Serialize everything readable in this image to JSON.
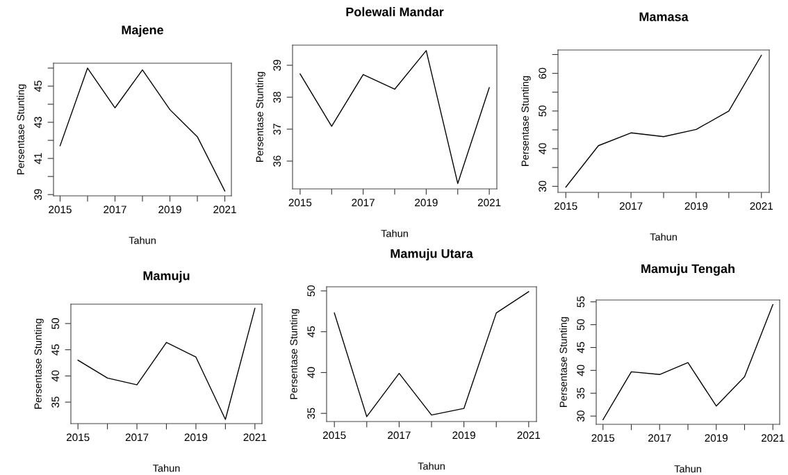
{
  "chart_data": [
    {
      "type": "line",
      "title": "Majene",
      "xlabel": "Tahun",
      "ylabel": "Persentase Stunting",
      "x": [
        2015,
        2016,
        2017,
        2018,
        2019,
        2020,
        2021
      ],
      "series": [
        {
          "color": "#000000",
          "values": [
            41.7,
            46.0,
            43.8,
            45.9,
            43.7,
            42.2,
            39.2
          ]
        }
      ],
      "xlim": [
        2014.76,
        2021.24
      ],
      "xticks": [
        2015,
        {
          "value": 2016,
          "label": null
        },
        2017,
        {
          "value": 2018,
          "label": null
        },
        2019,
        {
          "value": 2020,
          "label": null
        },
        2021
      ],
      "ylim": [
        38.93,
        46.27
      ],
      "yticks": [
        39,
        {
          "value": 40,
          "label": null
        },
        41,
        {
          "value": 42,
          "label": null
        },
        43,
        {
          "value": 44,
          "label": null
        },
        45,
        {
          "value": 46,
          "label": null
        }
      ],
      "grid": false,
      "legend": false
    },
    {
      "type": "line",
      "title": "Polewali Mandar",
      "xlabel": "Tahun",
      "ylabel": "Persentase Stunting",
      "x": [
        2015,
        2016,
        2017,
        2018,
        2019,
        2020,
        2021
      ],
      "series": [
        {
          "color": "#000000",
          "values": [
            38.73,
            37.09,
            38.71,
            38.25,
            39.46,
            35.3,
            38.3
          ]
        }
      ],
      "xlim": [
        2014.76,
        2021.24
      ],
      "xticks": [
        2015,
        {
          "value": 2016,
          "label": null
        },
        2017,
        {
          "value": 2018,
          "label": null
        },
        2019,
        {
          "value": 2020,
          "label": null
        },
        2021
      ],
      "ylim": [
        35.13,
        39.63
      ],
      "yticks": [
        36,
        37,
        38,
        39
      ],
      "grid": false,
      "legend": false
    },
    {
      "type": "line",
      "title": "Mamasa",
      "xlabel": "Tahun",
      "ylabel": "Persentase Stunting",
      "x": [
        2015,
        2016,
        2017,
        2018,
        2019,
        2020,
        2021
      ],
      "series": [
        {
          "color": "#000000",
          "values": [
            29.8,
            40.8,
            44.2,
            43.2,
            45.1,
            50.0,
            64.8
          ]
        }
      ],
      "xlim": [
        2014.76,
        2021.24
      ],
      "xticks": [
        2015,
        {
          "value": 2016,
          "label": null
        },
        2017,
        {
          "value": 2018,
          "label": null
        },
        2019,
        {
          "value": 2020,
          "label": null
        },
        2021
      ],
      "ylim": [
        28.4,
        66.2
      ],
      "yticks": [
        30,
        {
          "value": 35,
          "label": null
        },
        40,
        {
          "value": 45,
          "label": null
        },
        50,
        {
          "value": 55,
          "label": null
        },
        60,
        {
          "value": 65,
          "label": null
        }
      ],
      "grid": false,
      "legend": false
    },
    {
      "type": "line",
      "title": "Mamuju",
      "xlabel": "Tahun",
      "ylabel": "Persentase Stunting",
      "x": [
        2015,
        2016,
        2017,
        2018,
        2019,
        2020,
        2021
      ],
      "series": [
        {
          "color": "#000000",
          "values": [
            43.0,
            39.6,
            38.3,
            46.4,
            43.6,
            31.7,
            52.9
          ]
        }
      ],
      "xlim": [
        2014.76,
        2021.24
      ],
      "xticks": [
        2015,
        {
          "value": 2016,
          "label": null
        },
        2017,
        {
          "value": 2018,
          "label": null
        },
        2019,
        {
          "value": 2020,
          "label": null
        },
        2021
      ],
      "ylim": [
        30.9,
        53.7
      ],
      "yticks": [
        35,
        40,
        45,
        50
      ],
      "grid": false,
      "legend": false
    },
    {
      "type": "line",
      "title": "Mamuju Utara",
      "xlabel": "Tahun",
      "ylabel": "Persentase Stunting",
      "x": [
        2015,
        2016,
        2017,
        2018,
        2019,
        2020,
        2021
      ],
      "series": [
        {
          "color": "#000000",
          "values": [
            47.3,
            34.6,
            39.9,
            34.8,
            35.6,
            47.3,
            49.9
          ]
        }
      ],
      "xlim": [
        2014.76,
        2021.24
      ],
      "xticks": [
        2015,
        {
          "value": 2016,
          "label": null
        },
        2017,
        {
          "value": 2018,
          "label": null
        },
        2019,
        {
          "value": 2020,
          "label": null
        },
        2021
      ],
      "ylim": [
        34.0,
        50.5
      ],
      "yticks": [
        35,
        40,
        45,
        50
      ],
      "grid": false,
      "legend": false
    },
    {
      "type": "line",
      "title": "Mamuju Tengah",
      "xlabel": "Tahun",
      "ylabel": "Persentase Stunting",
      "x": [
        2015,
        2016,
        2017,
        2018,
        2019,
        2020,
        2021
      ],
      "series": [
        {
          "color": "#000000",
          "values": [
            29.2,
            39.7,
            39.1,
            41.7,
            32.2,
            38.6,
            54.4
          ]
        }
      ],
      "xlim": [
        2014.76,
        2021.24
      ],
      "xticks": [
        2015,
        {
          "value": 2016,
          "label": null
        },
        2017,
        {
          "value": 2018,
          "label": null
        },
        2019,
        {
          "value": 2020,
          "label": null
        },
        2021
      ],
      "ylim": [
        28.2,
        55.4
      ],
      "yticks": [
        30,
        35,
        40,
        45,
        50,
        55
      ],
      "grid": false,
      "legend": false
    }
  ]
}
